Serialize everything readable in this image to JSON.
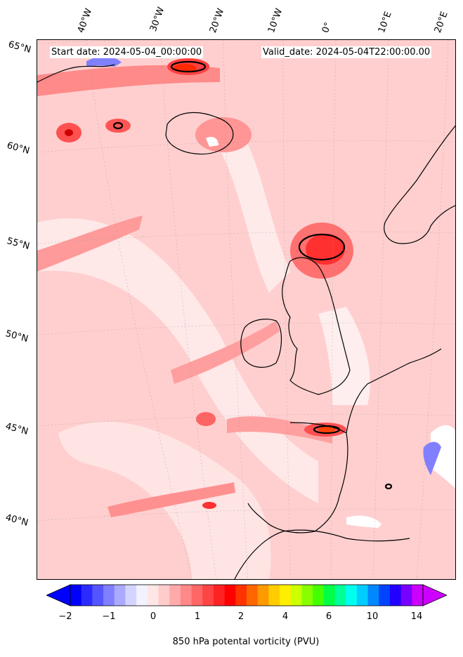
{
  "header": {
    "start_date": "Start date: 2024-05-04_00:00:00",
    "valid_date": "Valid_date: 2024-05-04T22:00:00.00"
  },
  "longitude_labels": [
    "40°W",
    "30°W",
    "20°W",
    "10°W",
    "0°",
    "10°E",
    "20°E"
  ],
  "latitude_labels": [
    "65°N",
    "60°N",
    "55°N",
    "50°N",
    "45°N",
    "40°N"
  ],
  "colorbar": {
    "label": "850 hPa potental vorticity (PVU)",
    "ticks": [
      "−2",
      "−1",
      "0",
      "1",
      "2",
      "4",
      "6",
      "10",
      "14"
    ],
    "colors": [
      "#0000ff",
      "#2b2bff",
      "#5555ff",
      "#7f7fff",
      "#aaaaff",
      "#d4d4ff",
      "#f2f2ff",
      "#ffe6e6",
      "#ffcccc",
      "#ffaaaa",
      "#ff8888",
      "#ff6666",
      "#ff4444",
      "#ff2222",
      "#ff0000",
      "#ff3300",
      "#ff6600",
      "#ff9900",
      "#ffcc00",
      "#ffee00",
      "#ccff00",
      "#88ff00",
      "#44ff00",
      "#00ff44",
      "#00ff99",
      "#00ffee",
      "#00ccff",
      "#0088ff",
      "#0044ff",
      "#2200ff",
      "#7700ff",
      "#cc00ff"
    ],
    "left_extend_color": "#0000ff",
    "right_extend_color": "#cc00ff"
  }
}
